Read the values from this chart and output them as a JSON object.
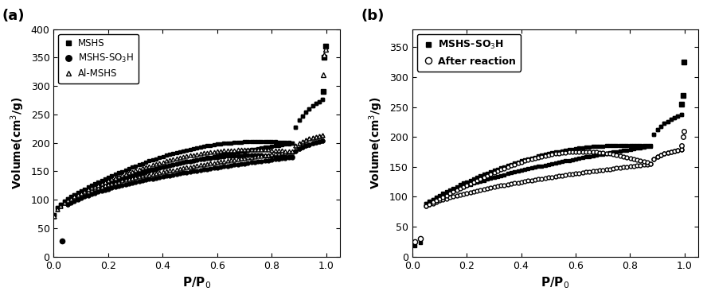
{
  "panel_a": {
    "title": "(a)",
    "xlabel": "P/P₀",
    "ylabel": "Volume(cm³/g)",
    "xlim": [
      0,
      1.05
    ],
    "ylim": [
      0,
      400
    ],
    "yticks": [
      0,
      50,
      100,
      150,
      200,
      250,
      300,
      350,
      400
    ],
    "xticks": [
      0.0,
      0.2,
      0.4,
      0.6,
      0.8,
      1.0
    ]
  },
  "panel_b": {
    "title": "(b)",
    "xlabel": "P/P₀",
    "ylabel": "Volume(cm³/g)",
    "xlim": [
      0,
      1.05
    ],
    "ylim": [
      0,
      380
    ],
    "yticks": [
      0,
      50,
      100,
      150,
      200,
      250,
      300,
      350
    ],
    "xticks": [
      0.0,
      0.2,
      0.4,
      0.6,
      0.8,
      1.0
    ]
  }
}
